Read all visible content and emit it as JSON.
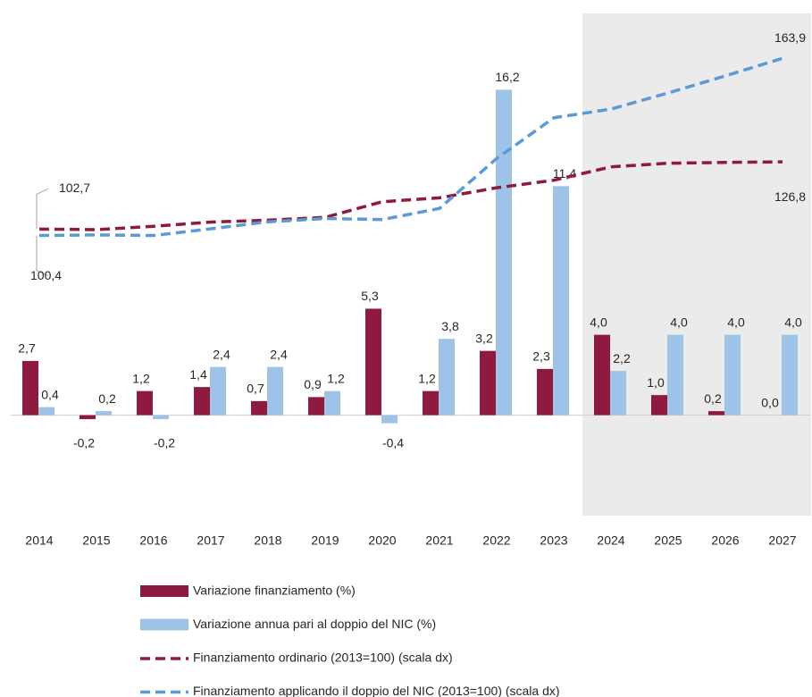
{
  "chart_data": {
    "type": "bar-line",
    "categories": [
      "2014",
      "2015",
      "2016",
      "2017",
      "2018",
      "2019",
      "2020",
      "2021",
      "2022",
      "2023",
      "2024",
      "2025",
      "2026",
      "2027"
    ],
    "series": [
      {
        "name": "Variazione finanziamento (%)",
        "kind": "bar",
        "color": "#8e1b3f",
        "values": [
          2.7,
          -0.2,
          1.2,
          1.4,
          0.7,
          0.9,
          5.3,
          1.2,
          3.2,
          2.3,
          4.0,
          1.0,
          0.2,
          0.0
        ],
        "value_labels": [
          "2,7",
          "-0,2",
          "1,2",
          "1,4",
          "0,7",
          "0,9",
          "5,3",
          "1,2",
          "3,2",
          "2,3",
          "4,0",
          "1,0",
          "0,2",
          "0,0"
        ]
      },
      {
        "name": "Variazione annua pari al doppio del NIC (%)",
        "kind": "bar",
        "color": "#9dc3e6",
        "values": [
          0.4,
          0.2,
          -0.2,
          2.4,
          2.4,
          1.2,
          -0.4,
          3.8,
          16.2,
          11.4,
          2.2,
          4.0,
          4.0,
          4.0
        ],
        "value_labels": [
          "0,4",
          "0,2",
          "-0,2",
          "2,4",
          "2,4",
          "1,2",
          "-0,4",
          "3,8",
          "16,2",
          "11,4",
          "2,2",
          "4,0",
          "4,0",
          "4,0"
        ]
      },
      {
        "name": "Finanziamento ordinario (2013=100) (scala dx)",
        "kind": "line",
        "axis": "y2",
        "color": "#8e1b3f",
        "values": [
          102.7,
          102.5,
          103.7,
          105.2,
          105.9,
          106.9,
          112.5,
          113.9,
          117.5,
          120.2,
          125.0,
          126.3,
          126.6,
          126.8
        ],
        "value_labels": [
          "102,7",
          null,
          null,
          null,
          null,
          null,
          null,
          null,
          null,
          null,
          null,
          null,
          null,
          "126,8"
        ]
      },
      {
        "name": "Finanziamento applicando il doppio del NIC (2013=100) (scala dx)",
        "kind": "line",
        "axis": "y2",
        "color": "#5b9bd5",
        "values": [
          100.4,
          100.6,
          100.4,
          102.8,
          105.3,
          106.5,
          106.1,
          110.1,
          128.0,
          142.6,
          145.7,
          151.5,
          157.6,
          163.9
        ],
        "value_labels": [
          "100,4",
          null,
          null,
          null,
          null,
          null,
          null,
          null,
          null,
          null,
          null,
          null,
          null,
          "163,9"
        ]
      }
    ],
    "ylim": [
      -5,
      20
    ],
    "y2lim": [
      0,
      180
    ],
    "shaded_from": "2024",
    "shade_color": "#ebebeb"
  }
}
